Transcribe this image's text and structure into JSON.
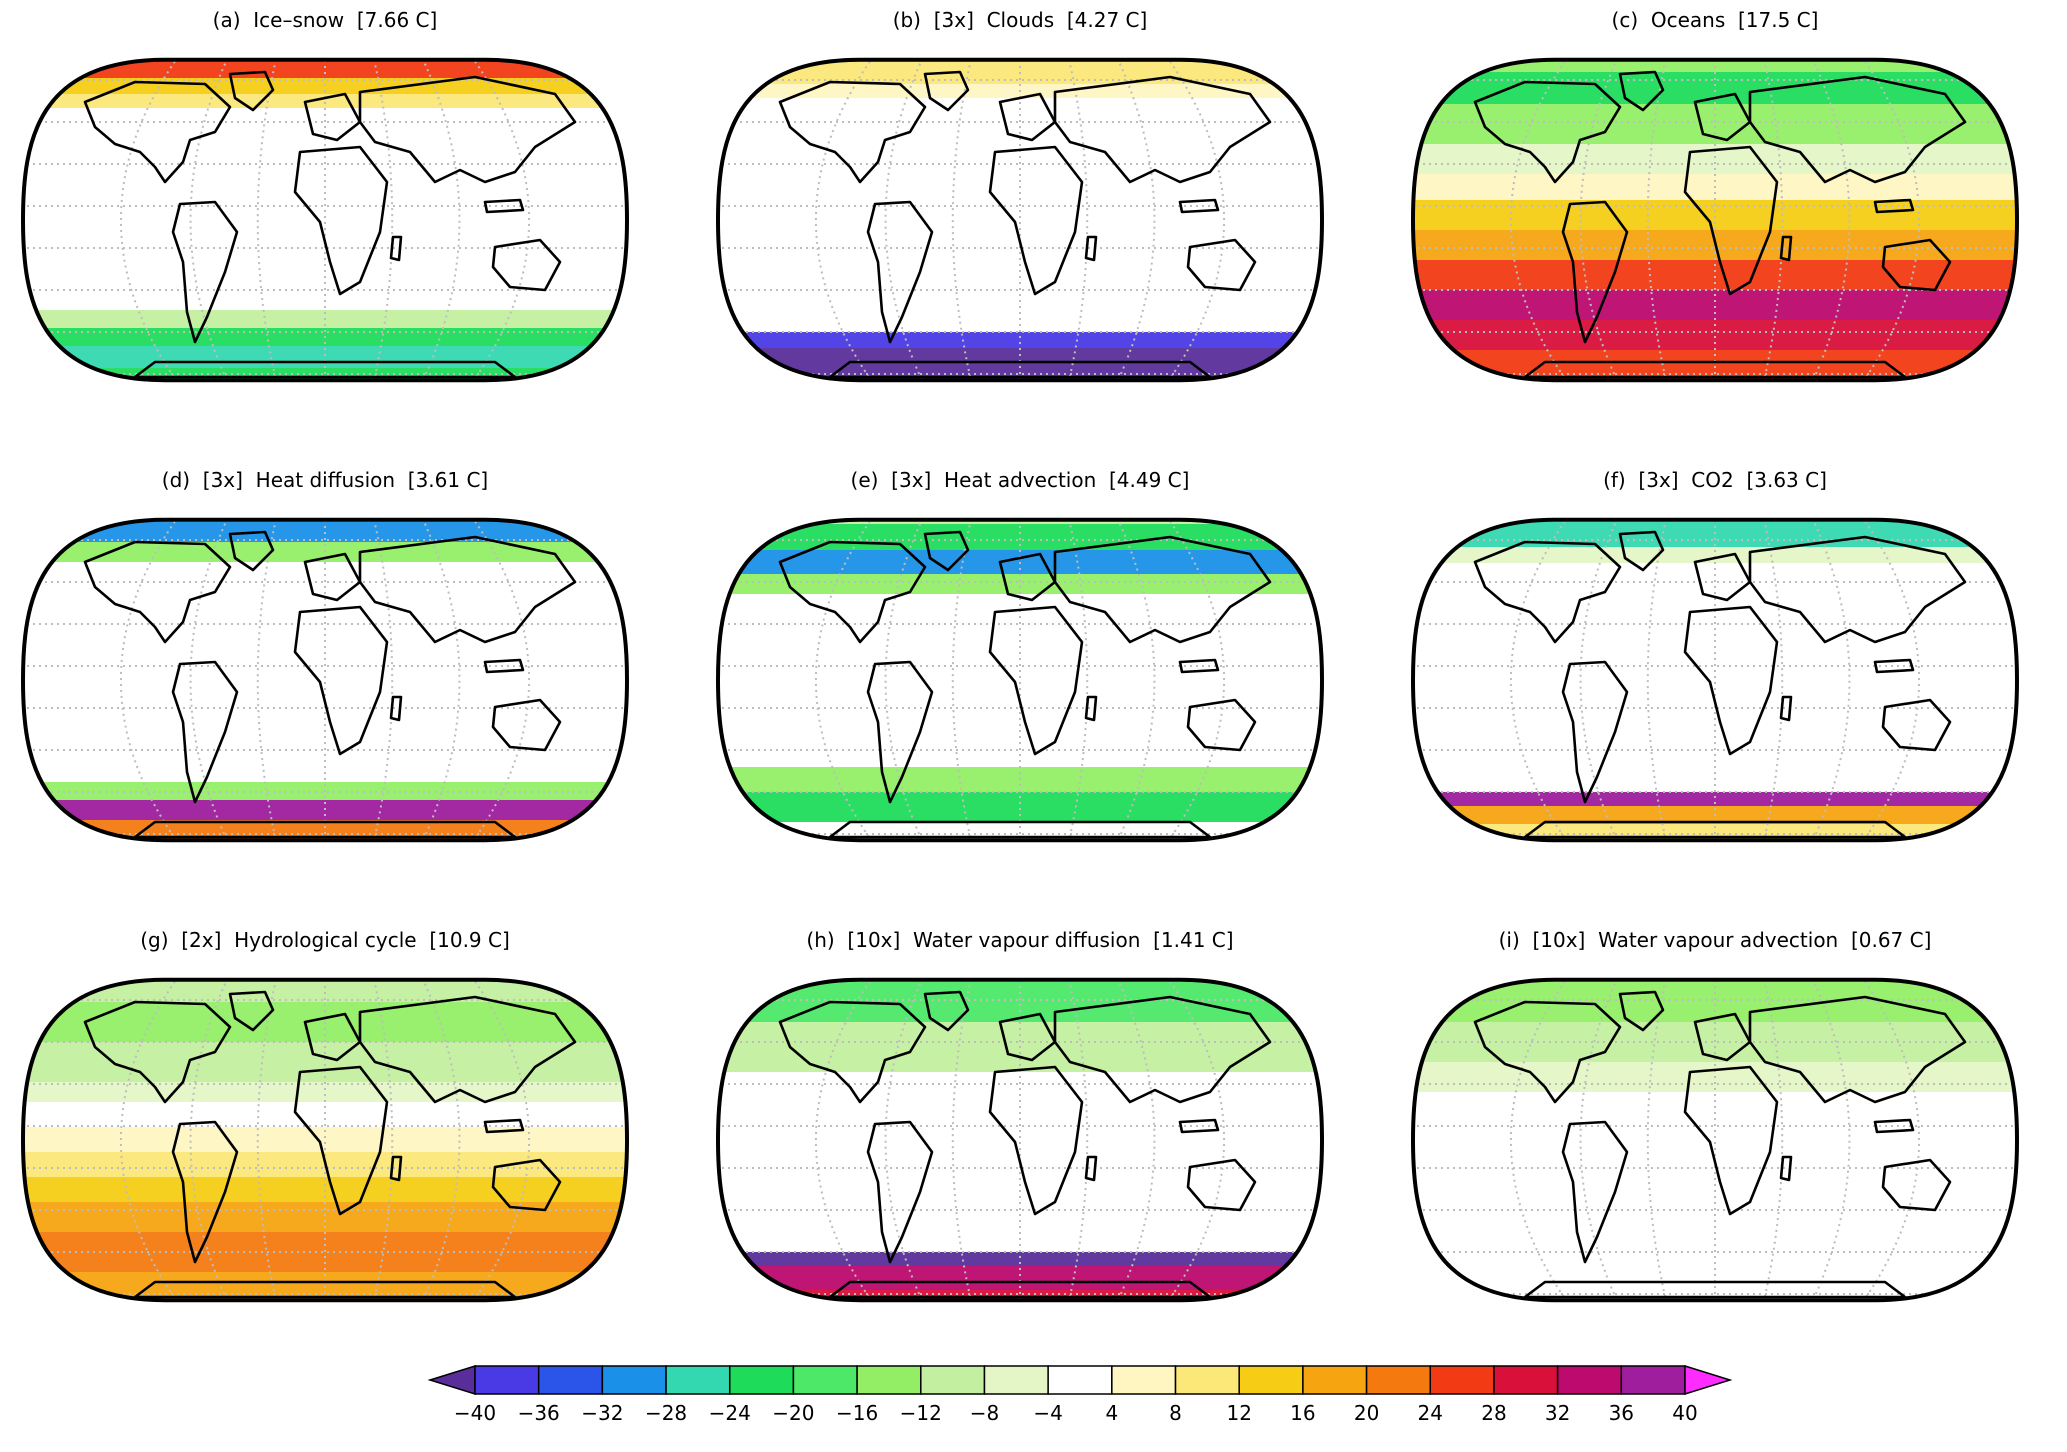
{
  "panels": [
    {
      "title": "(a)  Ice–snow  [7.66 C]"
    },
    {
      "title": "(b)  [3x]  Clouds  [4.27 C]"
    },
    {
      "title": "(c)  Oceans  [17.5 C]"
    },
    {
      "title": "(d)  [3x]  Heat diffusion  [3.61 C]"
    },
    {
      "title": "(e)  [3x]  Heat advection  [4.49 C]"
    },
    {
      "title": "(f)  [3x]  CO2  [3.63 C]"
    },
    {
      "title": "(g)  [2x]  Hydrological cycle  [10.9 C]"
    },
    {
      "title": "(h)  [10x]  Water vapour diffusion  [1.41 C]"
    },
    {
      "title": "(i)  [10x]  Water vapour advection  [0.67 C]"
    }
  ],
  "colorbar": {
    "tick_labels": [
      "−40",
      "−36",
      "−32",
      "−28",
      "−24",
      "−20",
      "−16",
      "−12",
      "−8",
      "−4",
      "4",
      "8",
      "12",
      "16",
      "20",
      "24",
      "28",
      "32",
      "36",
      "40"
    ],
    "colors": [
      "#5a2e9a",
      "#4a3ae6",
      "#2a55e8",
      "#1a90e8",
      "#33d8b0",
      "#1edc5a",
      "#4de868",
      "#93ee66",
      "#c3f0a0",
      "#e4f6c6",
      "#ffffff",
      "#fff6c2",
      "#fbe878",
      "#f6cd14",
      "#f6a410",
      "#f47a10",
      "#f23a14",
      "#d8103a",
      "#bc0a6e",
      "#9e1e9e",
      "#ff2cff"
    ]
  },
  "palette": {
    "land": "#000000",
    "grid": "#bdbdbd",
    "outline": "#000000"
  }
}
